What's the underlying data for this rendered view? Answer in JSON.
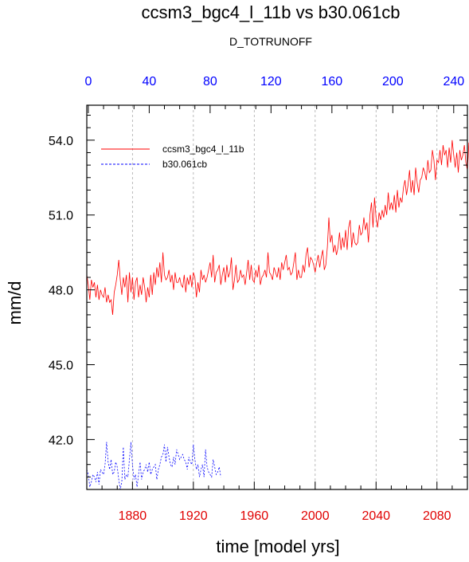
{
  "chart_data": {
    "type": "line",
    "title": "ccsm3_bgc4_l_11b vs b30.061cb",
    "subtitle": "D_TOTRUNOFF",
    "xlabel": "time [model yrs]",
    "ylabel": "mm/d",
    "colors": {
      "bottom_tick_labels": "#e00000",
      "top_tick_labels": "#0000ff",
      "series_1": "#ff0000",
      "series_2": "#0000ff",
      "grid": "#aaaaaa"
    },
    "bottom_axis": {
      "range": [
        1850,
        2100
      ],
      "ticks": [
        "1880",
        "1920",
        "1960",
        "2000",
        "2040",
        "2080"
      ],
      "tick_values": [
        1880,
        1920,
        1960,
        2000,
        2040,
        2080
      ]
    },
    "top_axis": {
      "range": [
        -1,
        249
      ],
      "ticks": [
        "0",
        "40",
        "80",
        "120",
        "160",
        "200",
        "240"
      ],
      "tick_values": [
        0,
        40,
        80,
        120,
        160,
        200,
        240
      ]
    },
    "y_axis": {
      "range": [
        40.0,
        55.4
      ],
      "ticks": [
        "42.0",
        "45.0",
        "48.0",
        "51.0",
        "54.0"
      ],
      "tick_values": [
        42,
        45,
        48,
        51,
        54
      ]
    },
    "grid": "vertical dashed",
    "legend": {
      "placement": "top-left"
    },
    "series": [
      {
        "name": "ccsm3_bgc4_l_11b",
        "style": "solid",
        "x_start": 1850,
        "values": [
          48.6,
          48.2,
          47.6,
          48.4,
          48.1,
          48.3,
          47.7,
          48.2,
          47.6,
          48.0,
          47.8,
          47.7,
          48.1,
          47.5,
          47.8,
          47.5,
          47.6,
          47.0,
          47.9,
          48.2,
          48.6,
          49.2,
          48.4,
          47.8,
          48.5,
          48.1,
          48.6,
          47.5,
          48.7,
          47.9,
          48.5,
          47.6,
          48.3,
          48.5,
          47.7,
          48.2,
          47.8,
          48.5,
          48.1,
          47.5,
          48.1,
          47.7,
          48.6,
          47.8,
          48.7,
          48.2,
          48.9,
          48.5,
          49.1,
          48.3,
          49.5,
          48.6,
          48.4,
          48.5,
          48.8,
          48.3,
          48.6,
          48.0,
          48.7,
          48.3,
          48.3,
          48.5,
          48.2,
          48.1,
          48.6,
          47.9,
          48.5,
          48.2,
          48.6,
          48.1,
          48.7,
          48.5,
          47.7,
          48.3,
          47.9,
          48.8,
          48.4,
          48.6,
          48.3,
          48.5,
          48.8,
          49.1,
          48.5,
          49.4,
          48.3,
          48.7,
          48.8,
          49.0,
          48.2,
          48.6,
          48.9,
          48.3,
          49.0,
          48.5,
          48.7,
          49.3,
          48.0,
          48.4,
          49.0,
          48.3,
          48.4,
          48.8,
          48.5,
          48.6,
          48.2,
          48.7,
          49.2,
          48.4,
          49.0,
          48.4,
          48.3,
          48.8,
          48.5,
          49.0,
          48.2,
          48.5,
          48.6,
          48.8,
          48.5,
          49.5,
          48.7,
          48.6,
          48.4,
          48.9,
          48.7,
          48.5,
          48.9,
          48.4,
          49.1,
          48.8,
          49.1,
          49.4,
          48.8,
          48.9,
          48.6,
          48.7,
          49.1,
          49.5,
          48.4,
          48.8,
          48.5,
          48.5,
          49.0,
          48.7,
          49.4,
          49.7,
          48.9,
          49.3,
          49.2,
          49.0,
          48.7,
          49.1,
          49.4,
          48.9,
          49.3,
          49.6,
          48.8,
          49.0,
          49.7,
          50.9,
          49.9,
          50.2,
          49.5,
          49.8,
          49.4,
          49.7,
          50.3,
          49.6,
          50.1,
          49.7,
          50.4,
          49.6,
          50.5,
          50.8,
          49.7,
          50.3,
          49.9,
          49.8,
          49.9,
          50.6,
          50.2,
          50.3,
          50.9,
          50.4,
          50.7,
          49.9,
          51.0,
          51.5,
          50.5,
          51.7,
          50.9,
          50.5,
          51.1,
          50.8,
          51.2,
          50.9,
          51.4,
          51.0,
          51.9,
          51.2,
          51.5,
          51.2,
          51.8,
          51.1,
          52.0,
          51.3,
          51.7,
          51.5,
          52.1,
          52.4,
          51.8,
          52.2,
          52.8,
          51.9,
          52.4,
          51.8,
          52.9,
          52.3,
          51.9,
          52.4,
          52.5,
          52.9,
          52.7,
          52.4,
          53.2,
          52.7,
          52.8,
          53.6,
          53.2,
          52.4,
          53.2,
          53.1,
          53.6,
          53.0,
          53.8,
          53.4,
          53.6,
          52.9,
          53.7,
          53.1,
          54.0,
          53.4,
          52.9,
          53.5,
          52.7,
          53.6,
          53.2,
          53.4,
          53.8,
          53.1,
          52.8,
          53.9,
          53.6,
          54.2,
          54.7,
          54.6
        ]
      },
      {
        "name": "b30.061cb",
        "style": "dashed",
        "x_start": 1850,
        "values": [
          40.8,
          40.6,
          40.1,
          40.3,
          40.6,
          40.5,
          40.3,
          40.7,
          40.2,
          40.8,
          40.7,
          40.6,
          41.0,
          41.9,
          41.1,
          40.8,
          41.2,
          40.6,
          40.7,
          41.1,
          40.9,
          40.4,
          40.0,
          40.3,
          41.7,
          40.4,
          40.6,
          40.5,
          41.2,
          41.9,
          41.0,
          40.4,
          40.6,
          40.1,
          40.6,
          41.1,
          40.4,
          40.7,
          40.8,
          41.0,
          40.7,
          41.1,
          40.6,
          40.8,
          40.9,
          41.0,
          40.4,
          40.8,
          41.0,
          41.3,
          41.4,
          41.8,
          41.1,
          41.7,
          41.3,
          41.0,
          40.9,
          41.3,
          41.0,
          41.6,
          41.4,
          41.2,
          41.3,
          41.4,
          41.2,
          41.1,
          40.8,
          41.3,
          41.1,
          41.0,
          41.8,
          41.2,
          40.8,
          41.0,
          40.5,
          40.8,
          41.0,
          40.5,
          41.6,
          40.9,
          40.7,
          40.6,
          40.5,
          41.2,
          40.9,
          40.6,
          40.7,
          40.9,
          40.5
        ]
      }
    ]
  }
}
